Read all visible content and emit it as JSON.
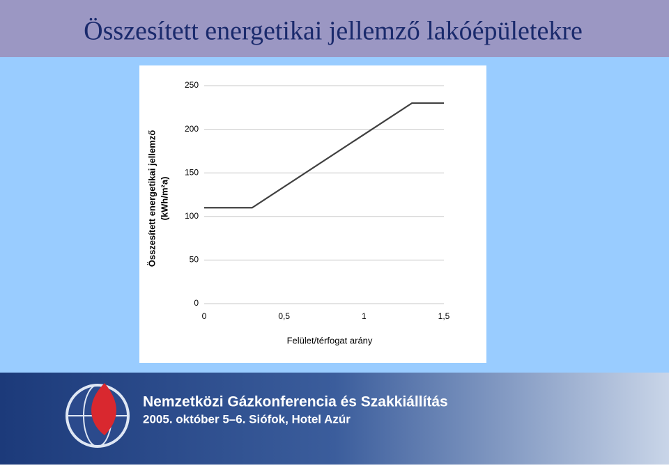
{
  "title": "Összesített energetikai jellemző lakóépületekre",
  "chart_data": {
    "type": "line",
    "xlabel": "Felület/térfogat arány",
    "ylabel": [
      "Összesített energetikai jellemző",
      "(kWh/m²a)"
    ],
    "x": [
      0,
      0.3,
      1.3,
      1.5
    ],
    "series": [
      {
        "color": "#404040",
        "values": [
          110,
          110,
          230,
          230
        ]
      }
    ],
    "xlim": [
      0,
      1.5
    ],
    "xticks": [
      0,
      {
        "value": 0.5,
        "label": "0,5"
      },
      1,
      {
        "value": 1.5,
        "label": "1,5"
      }
    ],
    "ylim": [
      0,
      250
    ],
    "yticks": [
      0,
      50,
      100,
      150,
      200,
      250
    ],
    "grid": true
  },
  "footer": {
    "line1": "Nemzetközi Gázkonferencia és Szakkiállítás",
    "line2": "2005. október 5–6. Siófok, Hotel Azúr"
  }
}
